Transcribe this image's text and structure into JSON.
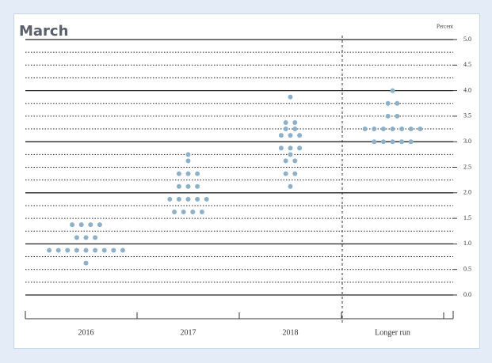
{
  "chart_data": {
    "type": "dot",
    "title": "March",
    "y_label": "Percent",
    "categories": [
      "2016",
      "2017",
      "2018",
      "Longer run"
    ],
    "values": [
      [
        1.375,
        1.375,
        1.375,
        1.375,
        1.125,
        1.125,
        1.125,
        0.875,
        0.875,
        0.875,
        0.875,
        0.875,
        0.875,
        0.875,
        0.875,
        0.875,
        0.625
      ],
      [
        2.75,
        2.625,
        2.375,
        2.375,
        2.375,
        2.125,
        2.125,
        2.125,
        1.875,
        1.875,
        1.875,
        1.875,
        1.875,
        1.625,
        1.625,
        1.625,
        1.625
      ],
      [
        3.875,
        3.375,
        3.375,
        3.25,
        3.25,
        3.125,
        3.125,
        3.125,
        2.875,
        2.875,
        2.875,
        2.75,
        2.625,
        2.625,
        2.375,
        2.375,
        2.125
      ],
      [
        4.0,
        3.75,
        3.75,
        3.5,
        3.5,
        3.25,
        3.25,
        3.25,
        3.25,
        3.25,
        3.25,
        3.25,
        3.0,
        3.0,
        3.0,
        3.0,
        3.0
      ]
    ],
    "color": "#8fb0c9",
    "ylim": [
      0,
      5
    ],
    "yticks": [
      {
        "value": 0,
        "label": "0.0"
      },
      {
        "value": 0.5,
        "label": "0.5"
      },
      {
        "value": 1,
        "label": "1.0"
      },
      {
        "value": 1.5,
        "label": "1.5"
      },
      {
        "value": 2,
        "label": "2.0"
      },
      {
        "value": 2.5,
        "label": "2.5"
      },
      {
        "value": 3,
        "label": "3.0"
      },
      {
        "value": 3.5,
        "label": "3.5"
      },
      {
        "value": 4,
        "label": "4.0"
      },
      {
        "value": 4.5,
        "label": "4.5"
      },
      {
        "value": 5,
        "label": "5.0"
      }
    ],
    "grid": true
  }
}
